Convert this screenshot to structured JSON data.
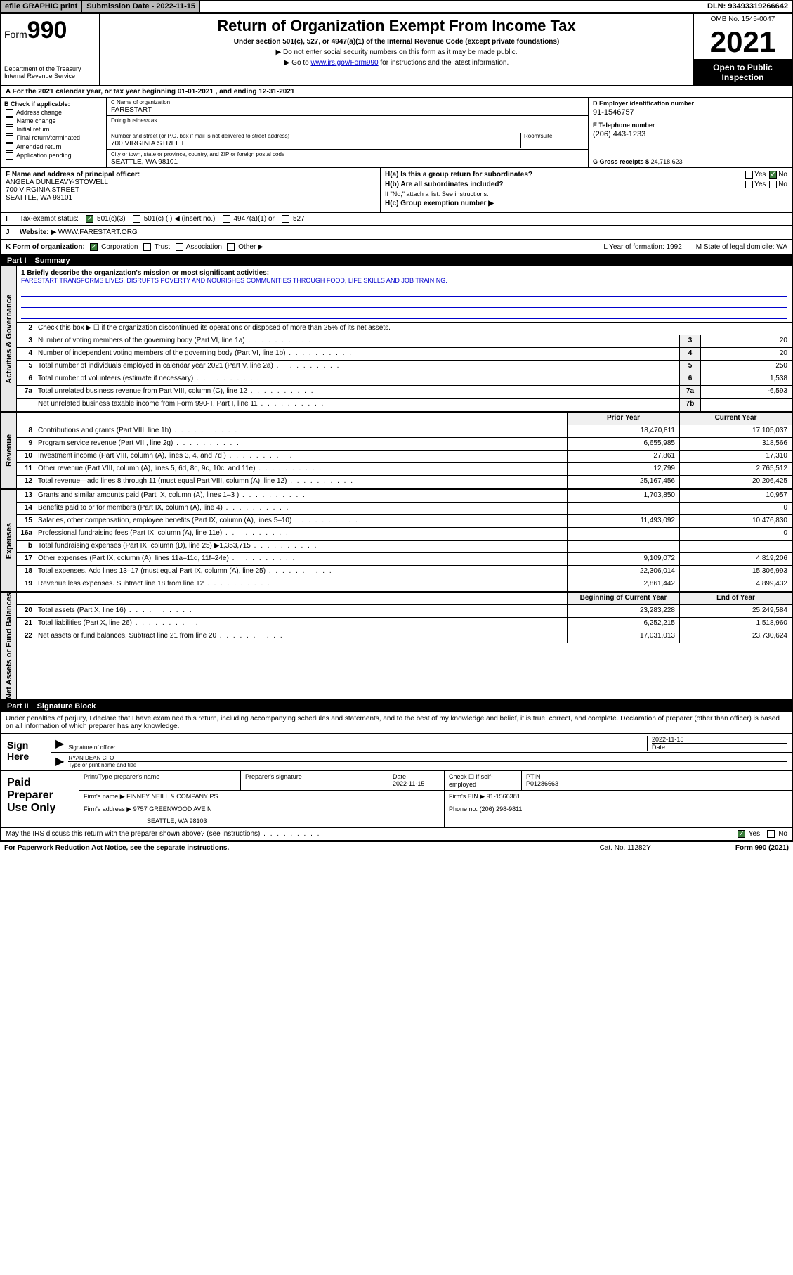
{
  "topbar": {
    "efile": "efile GRAPHIC print",
    "submission_label": "Submission Date - 2022-11-15",
    "dln": "DLN: 93493319266642"
  },
  "header": {
    "form_prefix": "Form",
    "form_num": "990",
    "dept": "Department of the Treasury",
    "irs": "Internal Revenue Service",
    "title": "Return of Organization Exempt From Income Tax",
    "sub": "Under section 501(c), 527, or 4947(a)(1) of the Internal Revenue Code (except private foundations)",
    "note1": "▶ Do not enter social security numbers on this form as it may be made public.",
    "note2_pre": "▶ Go to ",
    "note2_link": "www.irs.gov/Form990",
    "note2_post": " for instructions and the latest information.",
    "omb": "OMB No. 1545-0047",
    "year": "2021",
    "inspect": "Open to Public Inspection"
  },
  "row_a": "A For the 2021 calendar year, or tax year beginning 01-01-2021  , and ending 12-31-2021",
  "col_b": {
    "lbl": "B Check if applicable:",
    "opts": [
      "Address change",
      "Name change",
      "Initial return",
      "Final return/terminated",
      "Amended return",
      "Application pending"
    ]
  },
  "col_c": {
    "name_lbl": "C Name of organization",
    "name_val": "FARESTART",
    "dba_lbl": "Doing business as",
    "addr_lbl": "Number and street (or P.O. box if mail is not delivered to street address)",
    "room_lbl": "Room/suite",
    "addr_val": "700 VIRGINIA STREET",
    "city_lbl": "City or town, state or province, country, and ZIP or foreign postal code",
    "city_val": "SEATTLE, WA  98101"
  },
  "col_d": {
    "ein_lbl": "D Employer identification number",
    "ein_val": "91-1546757",
    "tel_lbl": "E Telephone number",
    "tel_val": "(206) 443-1233",
    "gross_lbl": "G Gross receipts $",
    "gross_val": "24,718,623"
  },
  "blk_f": {
    "lbl": "F Name and address of principal officer:",
    "name": "ANGELA DUNLEAVY-STOWELL",
    "addr1": "700 VIRGINIA STREET",
    "addr2": "SEATTLE, WA  98101"
  },
  "blk_h": {
    "ha": "H(a)  Is this a group return for subordinates?",
    "hb": "H(b)  Are all subordinates included?",
    "hnote": "If \"No,\" attach a list. See instructions.",
    "hc": "H(c)  Group exemption number ▶",
    "yes": "Yes",
    "no": "No"
  },
  "line_i": {
    "lbl": "Tax-exempt status:",
    "o1": "501(c)(3)",
    "o2": "501(c) (  ) ◀ (insert no.)",
    "o3": "4947(a)(1) or",
    "o4": "527"
  },
  "line_j": {
    "lbl": "Website: ▶",
    "val": "WWW.FARESTART.ORG"
  },
  "line_k": {
    "lbl": "K Form of organization:",
    "o1": "Corporation",
    "o2": "Trust",
    "o3": "Association",
    "o4": "Other ▶",
    "l": "L Year of formation: 1992",
    "m": "M State of legal domicile: WA"
  },
  "part1": {
    "hdr": "Part I",
    "title": "Summary"
  },
  "summary": {
    "mission_lbl": "1  Briefly describe the organization's mission or most significant activities:",
    "mission_txt": "FARESTART TRANSFORMS LIVES, DISRUPTS POVERTY AND NOURISHES COMMUNITIES THROUGH FOOD, LIFE SKILLS AND JOB TRAINING.",
    "l2": "Check this box ▶ ☐  if the organization discontinued its operations or disposed of more than 25% of its net assets.",
    "rows_gov": [
      {
        "n": "3",
        "t": "Number of voting members of the governing body (Part VI, line 1a)",
        "c": "3",
        "v": "20"
      },
      {
        "n": "4",
        "t": "Number of independent voting members of the governing body (Part VI, line 1b)",
        "c": "4",
        "v": "20"
      },
      {
        "n": "5",
        "t": "Total number of individuals employed in calendar year 2021 (Part V, line 2a)",
        "c": "5",
        "v": "250"
      },
      {
        "n": "6",
        "t": "Total number of volunteers (estimate if necessary)",
        "c": "6",
        "v": "1,538"
      },
      {
        "n": "7a",
        "t": "Total unrelated business revenue from Part VIII, column (C), line 12",
        "c": "7a",
        "v": "-6,593"
      },
      {
        "n": "",
        "t": "Net unrelated business taxable income from Form 990-T, Part I, line 11",
        "c": "7b",
        "v": ""
      }
    ],
    "py_lbl": "Prior Year",
    "cy_lbl": "Current Year",
    "rows_rev": [
      {
        "n": "8",
        "t": "Contributions and grants (Part VIII, line 1h)",
        "py": "18,470,811",
        "cy": "17,105,037"
      },
      {
        "n": "9",
        "t": "Program service revenue (Part VIII, line 2g)",
        "py": "6,655,985",
        "cy": "318,566"
      },
      {
        "n": "10",
        "t": "Investment income (Part VIII, column (A), lines 3, 4, and 7d )",
        "py": "27,861",
        "cy": "17,310"
      },
      {
        "n": "11",
        "t": "Other revenue (Part VIII, column (A), lines 5, 6d, 8c, 9c, 10c, and 11e)",
        "py": "12,799",
        "cy": "2,765,512"
      },
      {
        "n": "12",
        "t": "Total revenue—add lines 8 through 11 (must equal Part VIII, column (A), line 12)",
        "py": "25,167,456",
        "cy": "20,206,425"
      }
    ],
    "rows_exp": [
      {
        "n": "13",
        "t": "Grants and similar amounts paid (Part IX, column (A), lines 1–3 )",
        "py": "1,703,850",
        "cy": "10,957"
      },
      {
        "n": "14",
        "t": "Benefits paid to or for members (Part IX, column (A), line 4)",
        "py": "",
        "cy": "0"
      },
      {
        "n": "15",
        "t": "Salaries, other compensation, employee benefits (Part IX, column (A), lines 5–10)",
        "py": "11,493,092",
        "cy": "10,476,830"
      },
      {
        "n": "16a",
        "t": "Professional fundraising fees (Part IX, column (A), line 11e)",
        "py": "",
        "cy": "0"
      },
      {
        "n": "b",
        "t": "Total fundraising expenses (Part IX, column (D), line 25) ▶1,353,715",
        "py": "gray",
        "cy": "gray"
      },
      {
        "n": "17",
        "t": "Other expenses (Part IX, column (A), lines 11a–11d, 11f–24e)",
        "py": "9,109,072",
        "cy": "4,819,206"
      },
      {
        "n": "18",
        "t": "Total expenses. Add lines 13–17 (must equal Part IX, column (A), line 25)",
        "py": "22,306,014",
        "cy": "15,306,993"
      },
      {
        "n": "19",
        "t": "Revenue less expenses. Subtract line 18 from line 12",
        "py": "2,861,442",
        "cy": "4,899,432"
      }
    ],
    "na_py": "Beginning of Current Year",
    "na_cy": "End of Year",
    "rows_na": [
      {
        "n": "20",
        "t": "Total assets (Part X, line 16)",
        "py": "23,283,228",
        "cy": "25,249,584"
      },
      {
        "n": "21",
        "t": "Total liabilities (Part X, line 26)",
        "py": "6,252,215",
        "cy": "1,518,960"
      },
      {
        "n": "22",
        "t": "Net assets or fund balances. Subtract line 21 from line 20",
        "py": "17,031,013",
        "cy": "23,730,624"
      }
    ],
    "vbar_gov": "Activities & Governance",
    "vbar_rev": "Revenue",
    "vbar_exp": "Expenses",
    "vbar_na": "Net Assets or Fund Balances"
  },
  "part2": {
    "hdr": "Part II",
    "title": "Signature Block"
  },
  "sig": {
    "intro": "Under penalties of perjury, I declare that I have examined this return, including accompanying schedules and statements, and to the best of my knowledge and belief, it is true, correct, and complete. Declaration of preparer (other than officer) is based on all information of which preparer has any knowledge.",
    "here": "Sign Here",
    "sig_lbl": "Signature of officer",
    "date_val": "2022-11-15",
    "date_lbl": "Date",
    "name_val": "RYAN DEAN CFO",
    "name_lbl": "Type or print name and title"
  },
  "prep": {
    "lbl": "Paid Preparer Use Only",
    "h1": "Print/Type preparer's name",
    "h2": "Preparer's signature",
    "h3": "Date",
    "h3v": "2022-11-15",
    "h4": "Check ☐ if self-employed",
    "h5": "PTIN",
    "h5v": "P01286663",
    "firm_lbl": "Firm's name   ▶",
    "firm_val": "FINNEY NEILL & COMPANY PS",
    "ein_lbl": "Firm's EIN ▶",
    "ein_val": "91-1566381",
    "addr_lbl": "Firm's address ▶",
    "addr_val": "9757 GREENWOOD AVE N",
    "addr2": "SEATTLE, WA  98103",
    "phone_lbl": "Phone no.",
    "phone_val": "(206) 298-9811"
  },
  "footer": {
    "q": "May the IRS discuss this return with the preparer shown above? (see instructions)",
    "yes": "Yes",
    "no": "No"
  },
  "bottom": {
    "l": "For Paperwork Reduction Act Notice, see the separate instructions.",
    "c": "Cat. No. 11282Y",
    "r": "Form 990 (2021)"
  }
}
